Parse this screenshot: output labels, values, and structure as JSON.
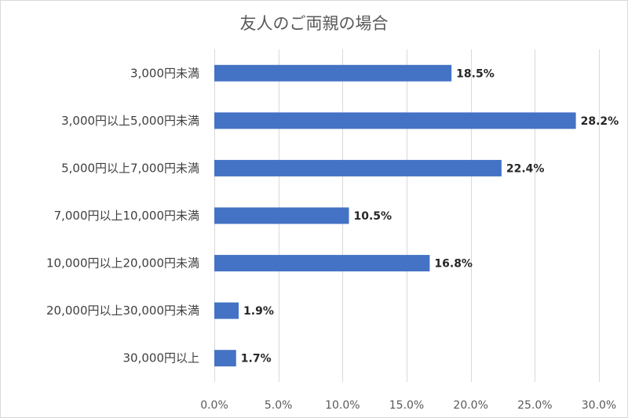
{
  "chart_data": {
    "type": "bar",
    "orientation": "horizontal",
    "title": "友人のご両親の場合",
    "categories": [
      "3,000円未満",
      "3,000円以上5,000円未満",
      "5,000円以上7,000円未満",
      "7,000円以上10,000円未満",
      "10,000円以上20,000円未満",
      "20,000円以上30,000円未満",
      "30,000円以上"
    ],
    "values": [
      18.5,
      28.2,
      22.4,
      10.5,
      16.8,
      1.9,
      1.7
    ],
    "value_labels": [
      "18.5%",
      "28.2%",
      "22.4%",
      "10.5%",
      "16.8%",
      "1.9%",
      "1.7%"
    ],
    "xlim": [
      0,
      30
    ],
    "x_ticks": [
      0,
      5,
      10,
      15,
      20,
      25,
      30
    ],
    "x_tick_labels": [
      "0.0%",
      "5.0%",
      "10.0%",
      "15.0%",
      "20.0%",
      "25.0%",
      "30.0%"
    ],
    "xlabel": "",
    "ylabel": "",
    "grid": true,
    "legend": "none",
    "bar_color": "#4472c4",
    "grid_color": "#d9d9d9"
  }
}
